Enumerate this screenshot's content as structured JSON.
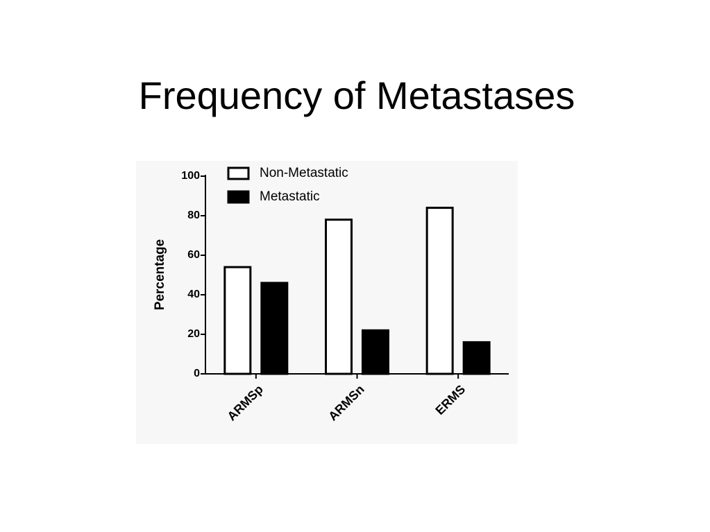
{
  "chart_data": {
    "type": "bar",
    "title": "Frequency of Metastases",
    "y_label": "Percentage",
    "categories": [
      "ARMSp",
      "ARMSn",
      "ERMS"
    ],
    "series": [
      {
        "name": "Non-Metastatic",
        "color": "#ffffff",
        "values": [
          54,
          78,
          84
        ]
      },
      {
        "name": "Metastatic",
        "color": "#000000",
        "values": [
          46,
          22,
          16
        ]
      }
    ],
    "ylim": [
      0,
      100
    ],
    "yticks": [
      0,
      20,
      40,
      60,
      80,
      100
    ],
    "legend": "top-left"
  }
}
